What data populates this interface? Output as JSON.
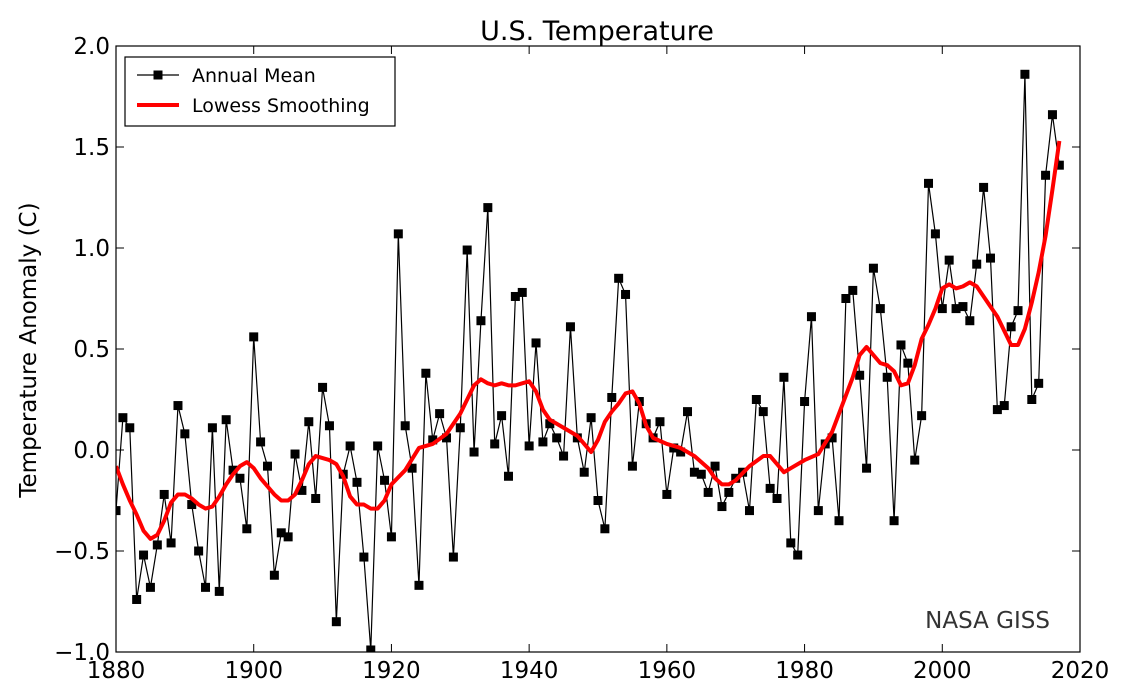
{
  "chart_data": {
    "type": "line",
    "title": "U.S. Temperature",
    "xlabel": "",
    "ylabel": "Temperature Anomaly (C)",
    "xlim": [
      1880,
      2020
    ],
    "ylim": [
      -1.0,
      2.0
    ],
    "xticks": [
      1880,
      1900,
      1920,
      1940,
      1960,
      1980,
      2000,
      2020
    ],
    "yticks": [
      -1.0,
      -0.5,
      0.0,
      0.5,
      1.0,
      1.5,
      2.0
    ],
    "ytick_labels": [
      "−1.0",
      "−0.5",
      "0.0",
      "0.5",
      "1.0",
      "1.5",
      "2.0"
    ],
    "grid": false,
    "legend_position": "top-left",
    "annotation": "NASA GISS",
    "colors": {
      "annual": "#000000",
      "lowess": "#ff0000",
      "annotation": "#333333"
    },
    "series": [
      {
        "name": "Annual Mean",
        "x_start": 1880,
        "values": [
          -0.3,
          0.16,
          0.11,
          -0.74,
          -0.52,
          -0.68,
          -0.47,
          -0.22,
          -0.46,
          0.22,
          0.08,
          -0.27,
          -0.5,
          -0.68,
          0.11,
          -0.7,
          0.15,
          -0.1,
          -0.14,
          -0.39,
          0.56,
          0.04,
          -0.08,
          -0.62,
          -0.41,
          -0.43,
          -0.02,
          -0.2,
          0.14,
          -0.24,
          0.31,
          0.12,
          -0.85,
          -0.12,
          0.02,
          -0.16,
          -0.53,
          -0.99,
          0.02,
          -0.15,
          -0.43,
          1.07,
          0.12,
          -0.09,
          -0.67,
          0.38,
          0.05,
          0.18,
          0.06,
          -0.53,
          0.11,
          0.99,
          -0.01,
          0.64,
          1.2,
          0.03,
          0.17,
          -0.13,
          0.76,
          0.78,
          0.02,
          0.53,
          0.04,
          0.13,
          0.06,
          -0.03,
          0.61,
          0.06,
          -0.11,
          0.16,
          -0.25,
          -0.39,
          0.26,
          0.85,
          0.77,
          -0.08,
          0.24,
          0.13,
          0.06,
          0.14,
          -0.22,
          0.01,
          -0.01,
          0.19,
          -0.11,
          -0.12,
          -0.21,
          -0.08,
          -0.28,
          -0.21,
          -0.14,
          -0.11,
          -0.3,
          0.25,
          0.19,
          -0.19,
          -0.24,
          0.36,
          -0.46,
          -0.52,
          0.24,
          0.66,
          -0.3,
          0.03,
          0.06,
          -0.35,
          0.75,
          0.79,
          0.37,
          -0.09,
          0.9,
          0.7,
          0.36,
          -0.35,
          0.52,
          0.43,
          -0.05,
          0.17,
          1.32,
          1.07,
          0.7,
          0.94,
          0.7,
          0.71,
          0.64,
          0.92,
          1.3,
          0.95,
          0.2,
          0.22,
          0.61,
          0.69,
          1.86,
          0.25,
          0.33,
          1.36,
          1.66,
          1.41
        ]
      },
      {
        "name": "Lowess Smoothing",
        "x": [
          1880,
          1881,
          1882,
          1883,
          1884,
          1885,
          1886,
          1887,
          1888,
          1889,
          1890,
          1891,
          1892,
          1893,
          1894,
          1895,
          1896,
          1897,
          1898,
          1899,
          1900,
          1901,
          1902,
          1903,
          1904,
          1905,
          1906,
          1907,
          1908,
          1909,
          1910,
          1911,
          1912,
          1913,
          1914,
          1915,
          1916,
          1917,
          1918,
          1919,
          1920,
          1922,
          1924,
          1926,
          1928,
          1930,
          1932,
          1933,
          1934,
          1935,
          1936,
          1937,
          1938,
          1939,
          1940,
          1941,
          1942,
          1943,
          1945,
          1947,
          1948,
          1949,
          1950,
          1951,
          1952,
          1953,
          1954,
          1955,
          1956,
          1957,
          1958,
          1960,
          1962,
          1964,
          1966,
          1967,
          1968,
          1969,
          1970,
          1972,
          1974,
          1975,
          1976,
          1977,
          1978,
          1980,
          1982,
          1984,
          1986,
          1987,
          1988,
          1989,
          1990,
          1991,
          1992,
          1993,
          1994,
          1995,
          1996,
          1997,
          1998,
          1999,
          2000,
          2001,
          2002,
          2003,
          2004,
          2005,
          2006,
          2007,
          2008,
          2009,
          2010,
          2011,
          2012,
          2013,
          2014,
          2015,
          2016,
          2017
        ],
        "values": [
          -0.08,
          -0.17,
          -0.25,
          -0.32,
          -0.4,
          -0.44,
          -0.42,
          -0.35,
          -0.26,
          -0.22,
          -0.22,
          -0.24,
          -0.27,
          -0.29,
          -0.28,
          -0.23,
          -0.17,
          -0.12,
          -0.08,
          -0.06,
          -0.09,
          -0.14,
          -0.18,
          -0.22,
          -0.25,
          -0.25,
          -0.22,
          -0.15,
          -0.07,
          -0.03,
          -0.04,
          -0.05,
          -0.07,
          -0.13,
          -0.23,
          -0.27,
          -0.27,
          -0.29,
          -0.29,
          -0.25,
          -0.17,
          -0.1,
          0.01,
          0.03,
          0.08,
          0.18,
          0.32,
          0.35,
          0.33,
          0.32,
          0.33,
          0.32,
          0.32,
          0.33,
          0.34,
          0.29,
          0.2,
          0.15,
          0.11,
          0.07,
          0.03,
          -0.01,
          0.05,
          0.14,
          0.19,
          0.23,
          0.28,
          0.29,
          0.23,
          0.12,
          0.06,
          0.03,
          0.01,
          -0.03,
          -0.09,
          -0.14,
          -0.17,
          -0.17,
          -0.15,
          -0.08,
          -0.03,
          -0.03,
          -0.07,
          -0.11,
          -0.09,
          -0.05,
          -0.02,
          0.09,
          0.27,
          0.36,
          0.47,
          0.51,
          0.47,
          0.43,
          0.42,
          0.39,
          0.32,
          0.33,
          0.42,
          0.55,
          0.62,
          0.7,
          0.8,
          0.82,
          0.8,
          0.81,
          0.83,
          0.81,
          0.76,
          0.71,
          0.66,
          0.59,
          0.52,
          0.52,
          0.6,
          0.73,
          0.88,
          1.06,
          1.29,
          1.53
        ]
      }
    ]
  }
}
